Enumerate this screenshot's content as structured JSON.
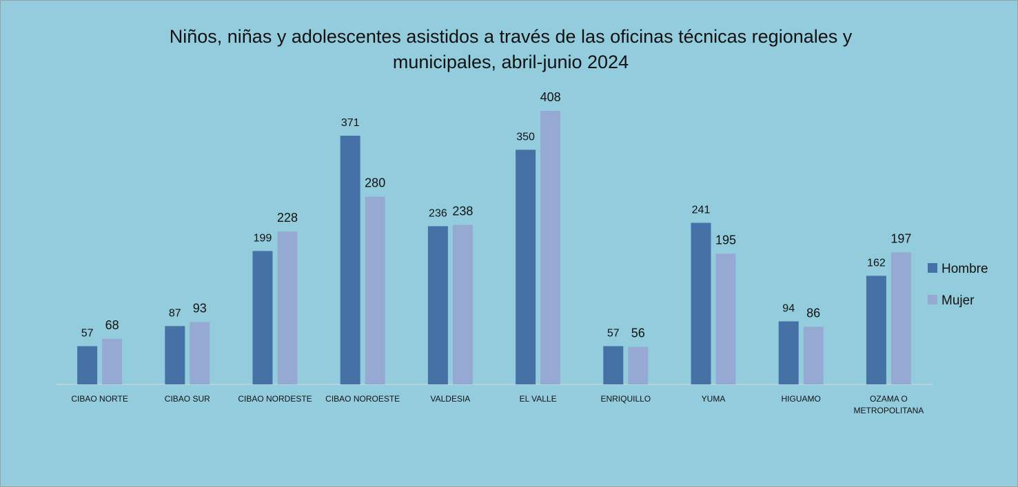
{
  "chart_data": {
    "type": "bar",
    "title": "Niños, niñas y adolescentes asistidos a través de las oficinas técnicas regionales y municipales, abril-junio 2024",
    "categories": [
      "CIBAO NORTE",
      "CIBAO SUR",
      "CIBAO NORDESTE",
      "CIBAO NOROESTE",
      "VALDESIA",
      "EL VALLE",
      "ENRIQUILLO",
      "YUMA",
      "HIGUAMO",
      "OZAMA O METROPOLITANA"
    ],
    "series": [
      {
        "name": "Hombre",
        "color": "#4571a7",
        "values": [
          57,
          87,
          199,
          371,
          236,
          350,
          57,
          241,
          94,
          162
        ]
      },
      {
        "name": "Mujer",
        "color": "#96a9d3",
        "values": [
          68,
          93,
          228,
          280,
          238,
          408,
          56,
          195,
          86,
          197
        ]
      }
    ],
    "legend": "right"
  }
}
